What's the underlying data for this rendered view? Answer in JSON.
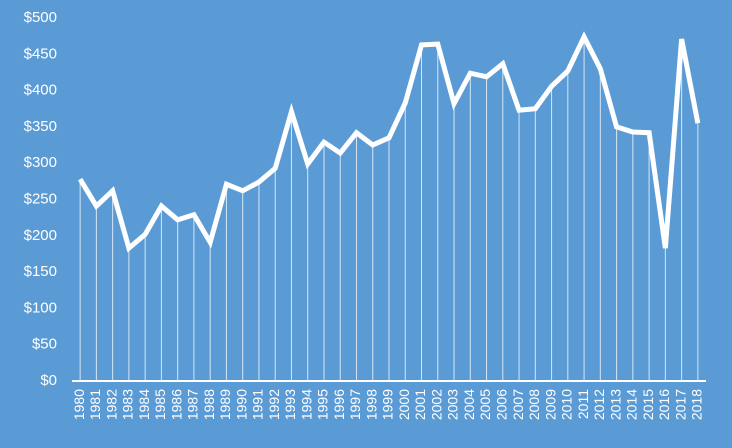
{
  "chart_data": {
    "type": "line",
    "categories": [
      "1980",
      "1981",
      "1982",
      "1983",
      "1984",
      "1985",
      "1986",
      "1987",
      "1988",
      "1989",
      "1990",
      "1991",
      "1992",
      "1993",
      "1994",
      "1995",
      "1996",
      "1997",
      "1998",
      "1999",
      "2000",
      "2001",
      "2002",
      "2003",
      "2004",
      "2005",
      "2006",
      "2007",
      "2008",
      "2009",
      "2010",
      "2011",
      "2012",
      "2013",
      "2014",
      "2015",
      "2016",
      "2017",
      "2018"
    ],
    "values": [
      278,
      241,
      262,
      183,
      202,
      241,
      222,
      229,
      191,
      271,
      262,
      274,
      293,
      371,
      299,
      329,
      314,
      342,
      325,
      335,
      383,
      463,
      464,
      382,
      424,
      419,
      437,
      373,
      375,
      406,
      427,
      474,
      430,
      350,
      343,
      342,
      183,
      471,
      355
    ],
    "color": "#ffffff",
    "drop_lines": true,
    "ylim": [
      0,
      500
    ],
    "yticks": [
      {
        "value": 0,
        "label": "$0"
      },
      {
        "value": 50,
        "label": "$50"
      },
      {
        "value": 100,
        "label": "$100"
      },
      {
        "value": 150,
        "label": "$150"
      },
      {
        "value": 200,
        "label": "$200"
      },
      {
        "value": 250,
        "label": "$250"
      },
      {
        "value": 300,
        "label": "$300"
      },
      {
        "value": 350,
        "label": "$350"
      },
      {
        "value": 400,
        "label": "$400"
      },
      {
        "value": 450,
        "label": "$450"
      },
      {
        "value": 500,
        "label": "$500"
      }
    ],
    "grid": false
  }
}
